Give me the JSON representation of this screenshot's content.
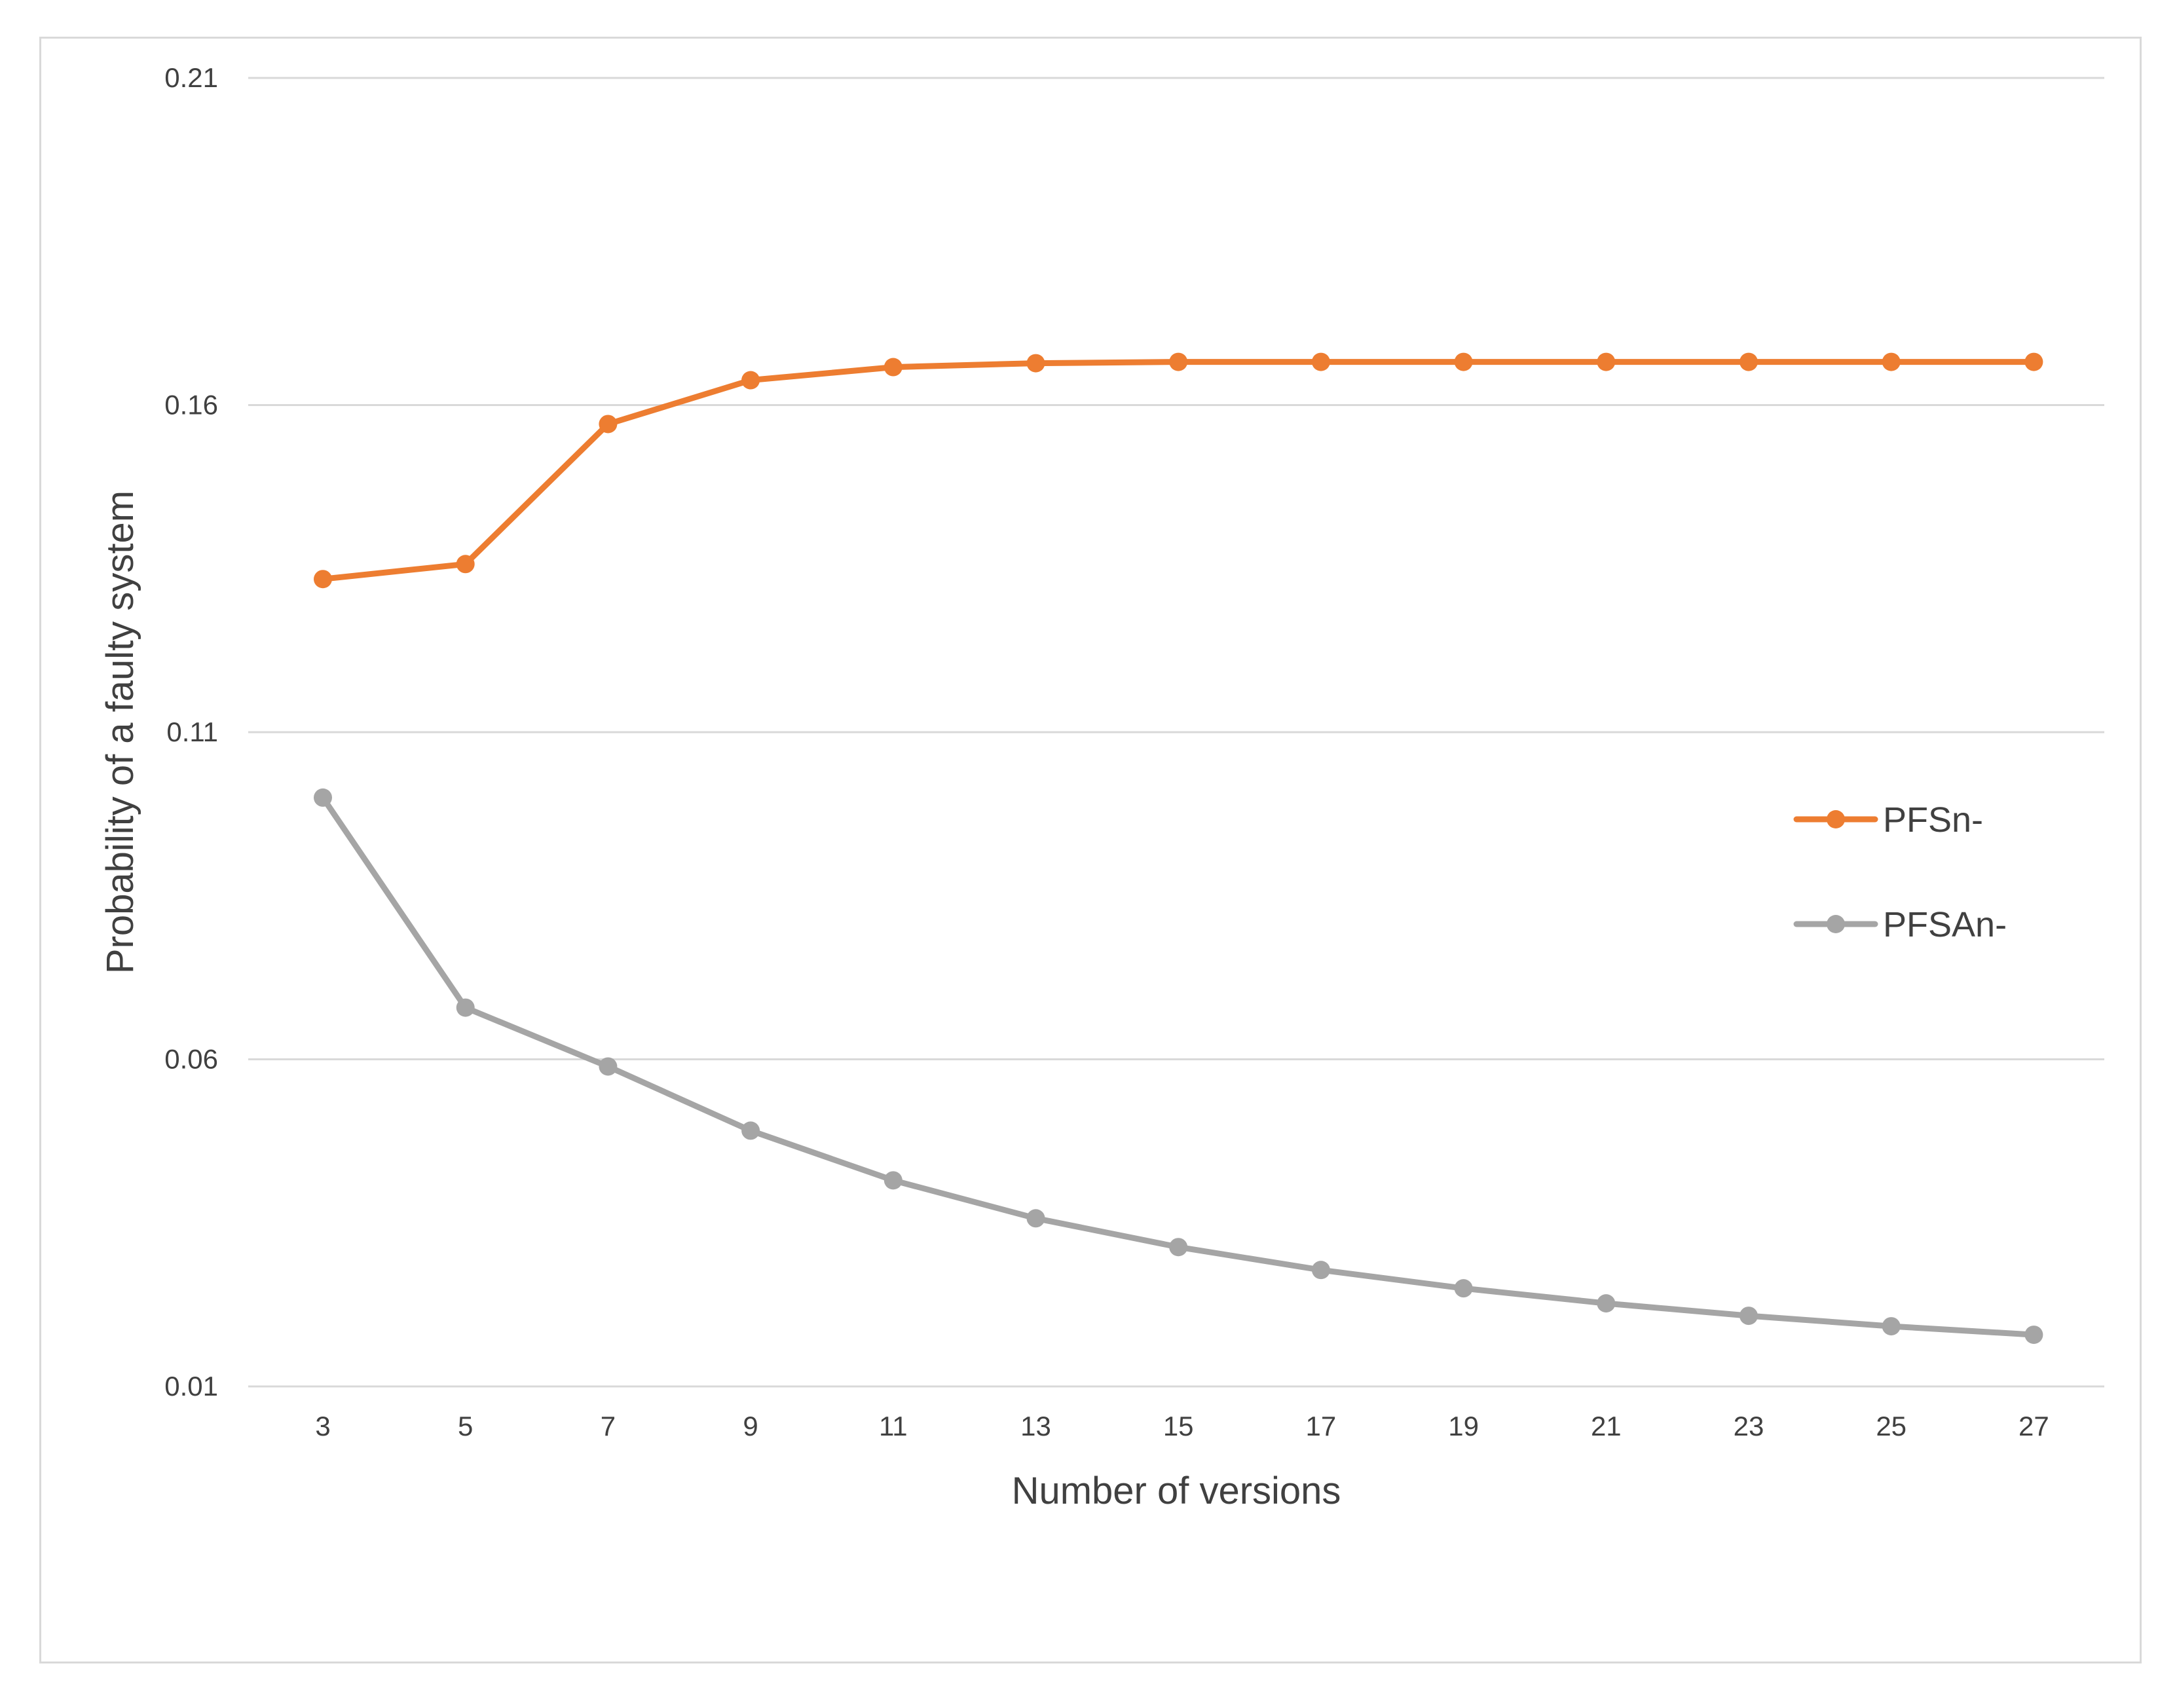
{
  "chart_data": {
    "type": "line",
    "title": "",
    "xlabel": "Number of versions",
    "ylabel": "Probability of a faulty system",
    "x": [
      3,
      5,
      7,
      9,
      11,
      13,
      15,
      17,
      19,
      21,
      23,
      25,
      27
    ],
    "x_tick_labels": [
      "3",
      "5",
      "7",
      "9",
      "11",
      "13",
      "15",
      "17",
      "19",
      "21",
      "23",
      "25",
      "27"
    ],
    "y_ticks": [
      0.01,
      0.06,
      0.11,
      0.16,
      0.21
    ],
    "y_tick_labels": [
      "0.01",
      "0.06",
      "0.11",
      "0.16",
      "0.21"
    ],
    "ylim": [
      0.01,
      0.21
    ],
    "grid": "horizontal",
    "legend": "right",
    "series": [
      {
        "name": "PFSn-",
        "color": "#ED7D31",
        "values": [
          0.1334,
          0.1357,
          0.1571,
          0.1638,
          0.1658,
          0.1664,
          0.1666,
          0.1666,
          0.1666,
          0.1666,
          0.1666,
          0.1666,
          0.1666
        ]
      },
      {
        "name": "PFSAn-",
        "color": "#A5A5A5",
        "values": [
          0.1,
          0.0679,
          0.0589,
          0.0491,
          0.0415,
          0.0357,
          0.0313,
          0.0278,
          0.025,
          0.0227,
          0.0208,
          0.0192,
          0.0179
        ]
      }
    ]
  }
}
